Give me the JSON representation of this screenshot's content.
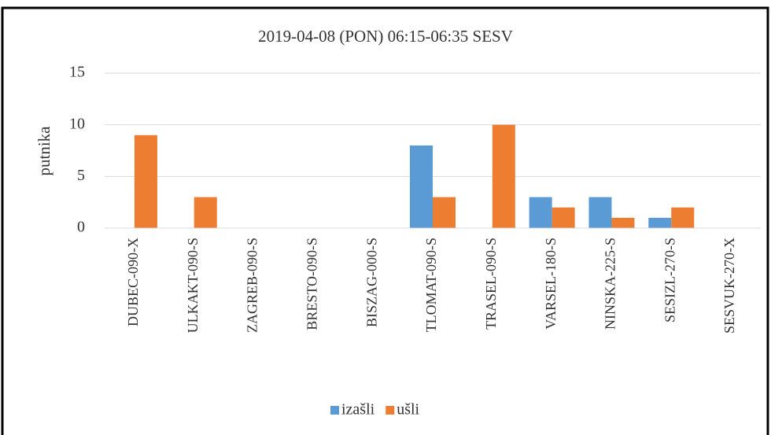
{
  "chart_data": {
    "type": "bar",
    "title": "2019-04-08 (PON) 06:15-06:35 SESV",
    "ylabel": "putnika",
    "categories": [
      "DUBEC-090-X",
      "ULKAKT-090-S",
      "ZAGREB-090-S",
      "BRESTO-090-S",
      "BISZAG-000-S",
      "TLOMAT-090-S",
      "TRASEL-090-S",
      "VARSEL-180-S",
      "NINSKA-225-S",
      "SESIZL-270-S",
      "SESVUK-270-X"
    ],
    "series": [
      {
        "name": "izašli",
        "color": "#5b9bd5",
        "values": [
          0,
          0,
          0,
          0,
          0,
          8,
          0,
          3,
          3,
          1,
          0
        ]
      },
      {
        "name": "ušli",
        "color": "#ed7d31",
        "values": [
          9,
          3,
          0,
          0,
          0,
          3,
          10,
          2,
          1,
          2,
          0
        ]
      }
    ],
    "ylim": [
      0,
      15
    ],
    "yticks": [
      0,
      5,
      10,
      15
    ],
    "grid": true,
    "legend": "bottom"
  }
}
